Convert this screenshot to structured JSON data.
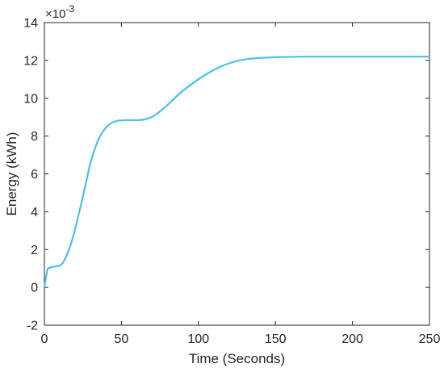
{
  "chart_data": {
    "type": "line",
    "title": "",
    "xlabel": "Time (Seconds)",
    "ylabel": "Energy (kWh)",
    "y_exponent_label": "×10",
    "y_exponent_power": "-3",
    "xlim": [
      0,
      250
    ],
    "ylim": [
      -2,
      14
    ],
    "x_ticks": [
      0,
      50,
      100,
      150,
      200,
      250
    ],
    "y_ticks": [
      -2,
      0,
      2,
      4,
      6,
      8,
      10,
      12,
      14
    ],
    "grid": false,
    "series": [
      {
        "color": "#4DBEEE",
        "x": [
          0,
          1,
          2,
          3,
          5,
          8,
          10,
          12,
          15,
          18,
          20,
          25,
          30,
          35,
          40,
          45,
          50,
          55,
          60,
          65,
          70,
          75,
          80,
          90,
          100,
          110,
          120,
          130,
          140,
          150,
          160,
          170,
          180,
          200,
          220,
          250
        ],
        "y": [
          0.0,
          0.5,
          0.95,
          1.02,
          1.08,
          1.12,
          1.15,
          1.3,
          1.8,
          2.5,
          3.1,
          4.8,
          6.6,
          7.8,
          8.45,
          8.75,
          8.83,
          8.84,
          8.84,
          8.88,
          9.02,
          9.3,
          9.65,
          10.4,
          11.0,
          11.5,
          11.85,
          12.05,
          12.13,
          12.17,
          12.19,
          12.2,
          12.2,
          12.2,
          12.2,
          12.2
        ]
      }
    ]
  }
}
